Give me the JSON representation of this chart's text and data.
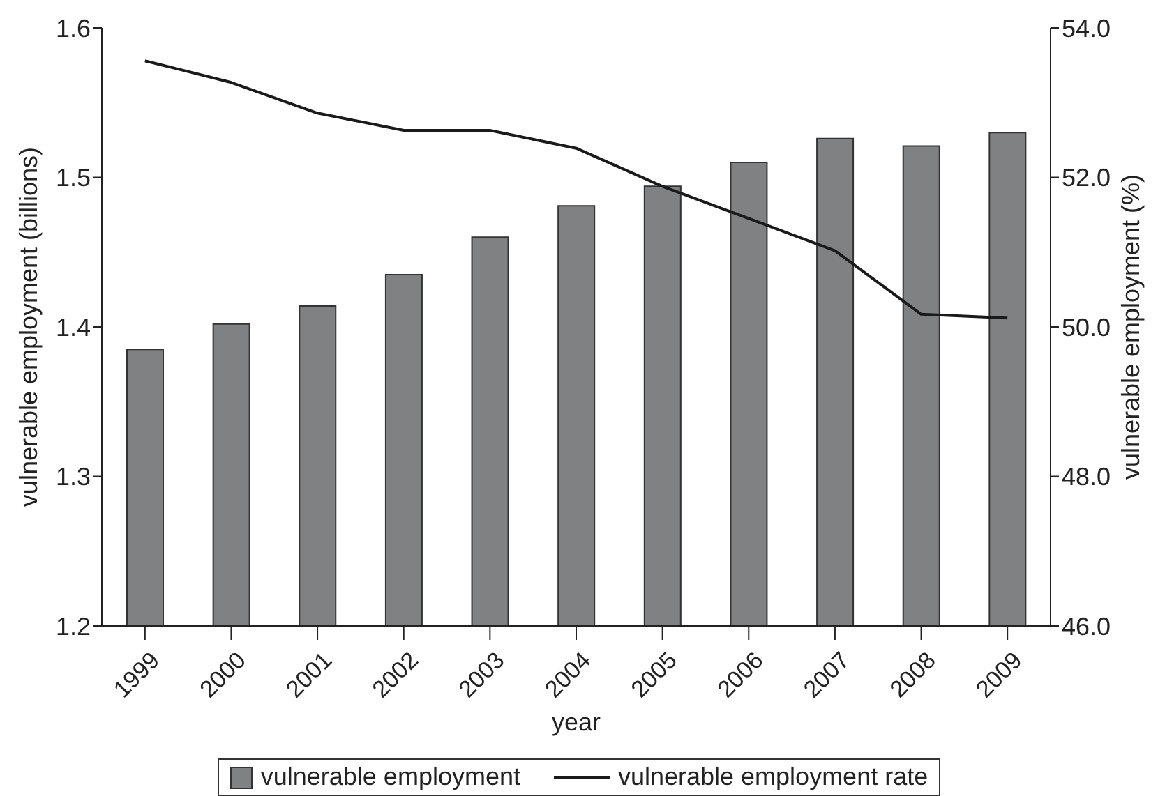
{
  "chart_data": {
    "type": "bar",
    "xlabel": "year",
    "ylabel": "vulnerable employment (billions)",
    "y2label": "vulnerable employment (%)",
    "categories": [
      "1999",
      "2000",
      "2001",
      "2002",
      "2003",
      "2004",
      "2005",
      "2006",
      "2007",
      "2008",
      "2009"
    ],
    "series": [
      {
        "name": "vulnerable employment",
        "color": "#808183",
        "values": [
          1.385,
          1.402,
          1.414,
          1.435,
          1.46,
          1.481,
          1.494,
          1.51,
          1.526,
          1.521,
          1.53
        ]
      },
      {
        "name": "vulnerable employment rate",
        "type": "line",
        "axis": "y2",
        "color": "#1a1a1a",
        "values": [
          53.56,
          53.27,
          52.86,
          52.63,
          52.63,
          52.39,
          51.88,
          51.45,
          51.02,
          50.17,
          50.12
        ]
      }
    ],
    "ylim": [
      1.2,
      1.6
    ],
    "yticks": [
      1.2,
      1.3,
      1.4,
      1.5,
      1.6
    ],
    "y2lim": [
      46,
      54
    ],
    "y2ticks": [
      {
        "value": 46,
        "label": "46.0"
      },
      {
        "value": 48,
        "label": "48.0"
      },
      {
        "value": 50,
        "label": "50.0"
      },
      {
        "value": 52,
        "label": "52.0"
      },
      {
        "value": 54,
        "label": "54.0"
      }
    ],
    "grid": false,
    "legend": "bottom",
    "marker": "none",
    "line_style": "solid"
  }
}
